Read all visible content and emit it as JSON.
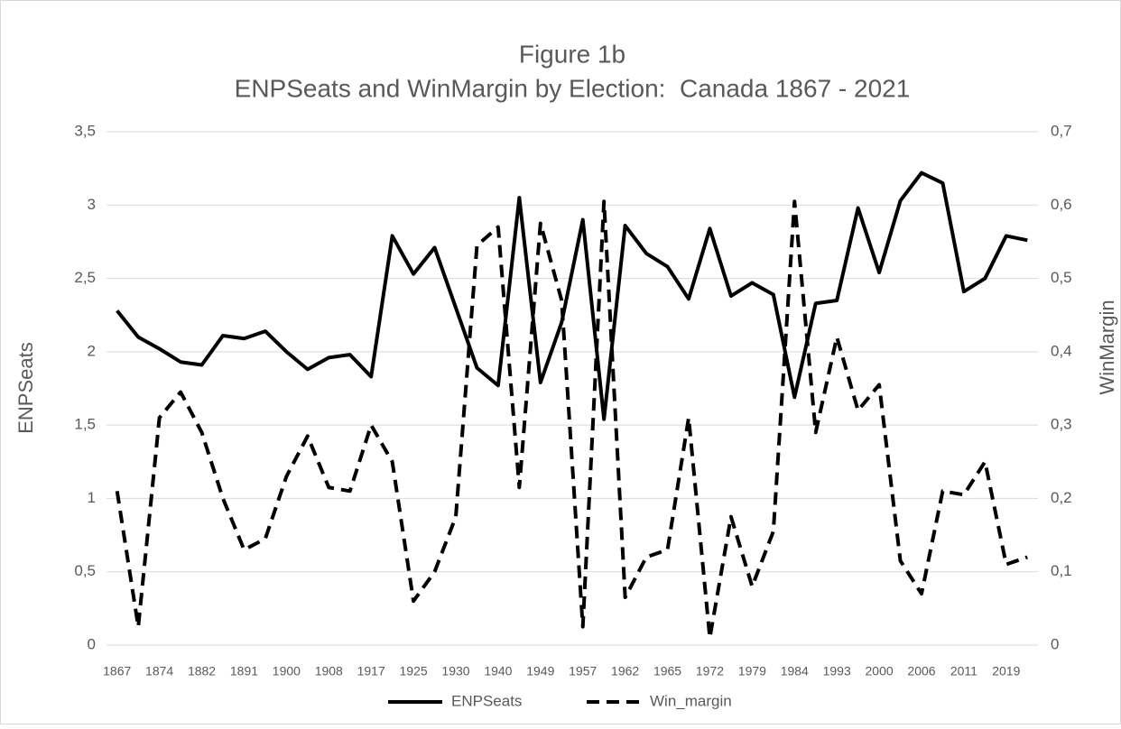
{
  "chart_data": {
    "type": "line",
    "title": "Figure 1b",
    "subtitle": "ENPSeats and WinMargin by Election:  Canada 1867 - 2021",
    "y_label": "ENPSeats",
    "y2_label": "WinMargin",
    "categories": [
      "1867",
      null,
      "1874",
      null,
      "1882",
      null,
      "1891",
      null,
      "1900",
      null,
      "1908",
      null,
      "1917",
      null,
      "1925",
      null,
      "1930",
      null,
      "1940",
      null,
      "1949",
      null,
      "1957",
      null,
      "1962",
      null,
      "1965",
      null,
      "1972",
      null,
      "1979",
      null,
      "1984",
      null,
      "1993",
      null,
      "2000",
      null,
      "2006",
      null,
      "2011",
      null,
      "2019",
      null
    ],
    "series": [
      {
        "name": "ENPSeats",
        "color": "#000000",
        "dash": "solid",
        "values": [
          2.28,
          2.1,
          2.02,
          1.93,
          1.91,
          2.11,
          2.09,
          2.14,
          2.0,
          1.88,
          1.96,
          1.98,
          1.83,
          2.79,
          2.53,
          2.71,
          2.3,
          1.89,
          1.77,
          3.05,
          1.79,
          2.2,
          2.9,
          1.54,
          2.86,
          2.67,
          2.58,
          2.36,
          2.84,
          2.38,
          2.47,
          2.39,
          1.69,
          2.33,
          2.35,
          2.98,
          2.54,
          3.03,
          3.22,
          3.15,
          2.41,
          2.5,
          2.79,
          2.76
        ]
      },
      {
        "name": "Win_margin",
        "color": "#000000",
        "dash": "dashed",
        "axis": "y2",
        "values": [
          0.21,
          0.025,
          0.31,
          0.345,
          0.29,
          0.2,
          0.13,
          0.145,
          0.23,
          0.285,
          0.215,
          0.21,
          0.3,
          0.25,
          0.06,
          0.1,
          0.175,
          0.545,
          0.57,
          0.215,
          0.575,
          0.47,
          0.025,
          0.605,
          0.065,
          0.12,
          0.13,
          0.31,
          0.01,
          0.175,
          0.08,
          0.155,
          0.605,
          0.29,
          0.42,
          0.32,
          0.355,
          0.115,
          0.07,
          0.21,
          0.205,
          0.25,
          0.11,
          0.12
        ]
      }
    ],
    "ylim": [
      0,
      3.5
    ],
    "yticks": [
      0,
      {
        "value": 0.5,
        "label": "0,5"
      },
      1,
      {
        "value": 1.5,
        "label": "1,5"
      },
      2,
      {
        "value": 2.5,
        "label": "2,5"
      },
      3,
      {
        "value": 3.5,
        "label": "3,5"
      }
    ],
    "y2lim": [
      0,
      0.7
    ],
    "y2ticks": [
      0,
      {
        "value": 0.1,
        "label": "0,1"
      },
      {
        "value": 0.2,
        "label": "0,2"
      },
      {
        "value": 0.3,
        "label": "0,3"
      },
      {
        "value": 0.4,
        "label": "0,4"
      },
      {
        "value": 0.5,
        "label": "0,5"
      },
      {
        "value": 0.6,
        "label": "0,6"
      },
      {
        "value": 0.7,
        "label": "0,7"
      }
    ],
    "grid": true,
    "legend": "bottom"
  }
}
